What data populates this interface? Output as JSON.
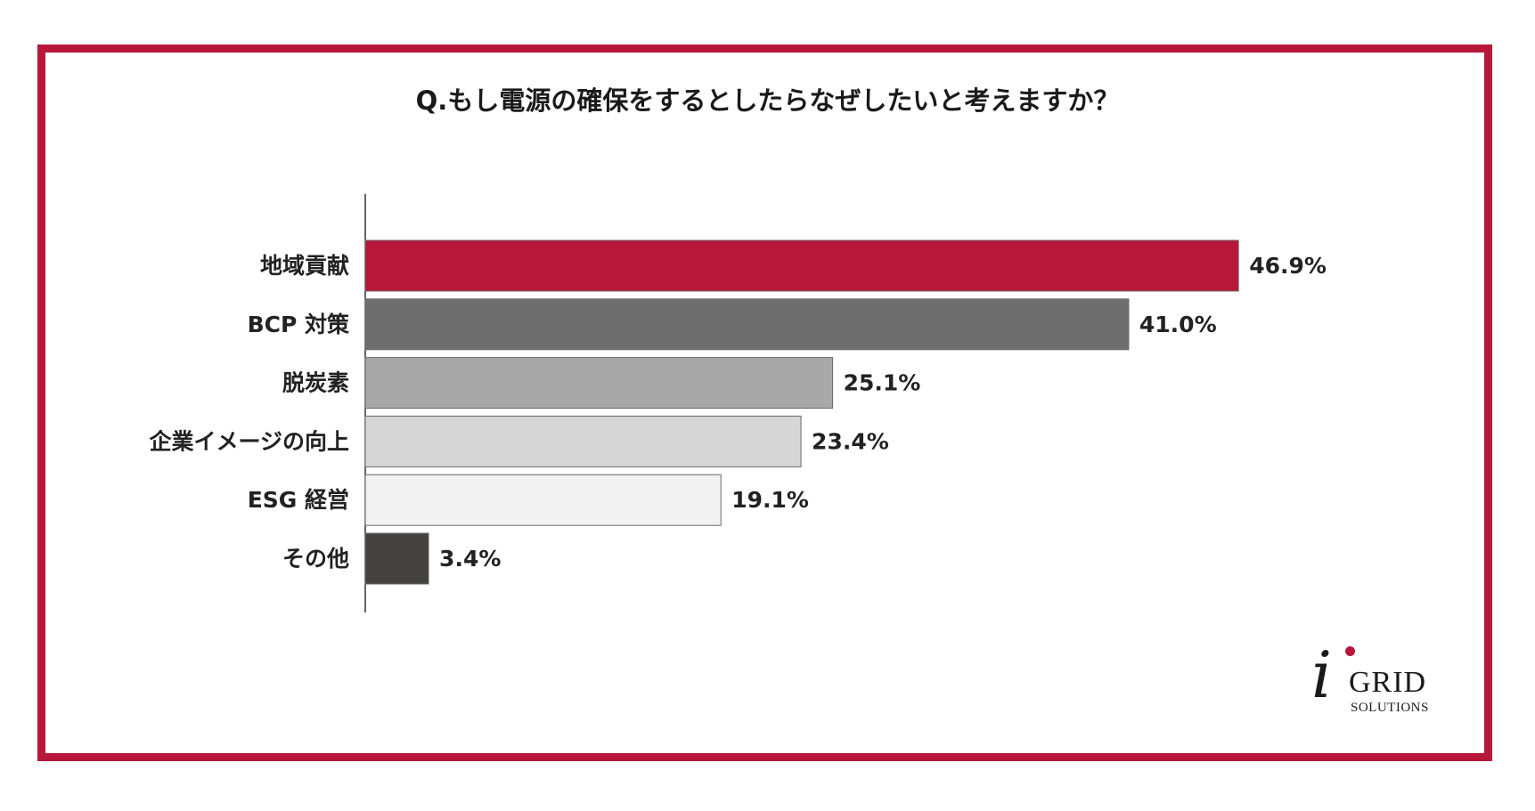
{
  "chart_data": {
    "type": "bar",
    "orientation": "horizontal",
    "title": "Q.もし電源の確保をするとしたらなぜしたいと考えますか？",
    "categories": [
      "地域貢献",
      "BCP 対策",
      "脱炭素",
      "企業イメージの向上",
      "ESG 経営",
      "その他"
    ],
    "values": [
      46.9,
      41.0,
      25.1,
      23.4,
      19.1,
      3.4
    ],
    "value_labels": [
      "46.9%",
      "41.0%",
      "25.1%",
      "23.4%",
      "19.1%",
      "3.4%"
    ],
    "unit": "%",
    "bar_colors": [
      "#b8173a",
      "#6e6e6e",
      "#a8a8a8",
      "#d6d6d6",
      "#f1f2f1",
      "#444141"
    ],
    "xlim": [
      0,
      100
    ],
    "grid": false,
    "legend": "none"
  },
  "frame": {
    "border_color": "#b8173a"
  },
  "logo": {
    "letter": "i",
    "name": "GRID",
    "sub": "SOLUTIONS",
    "accent_color": "#b8173a"
  }
}
